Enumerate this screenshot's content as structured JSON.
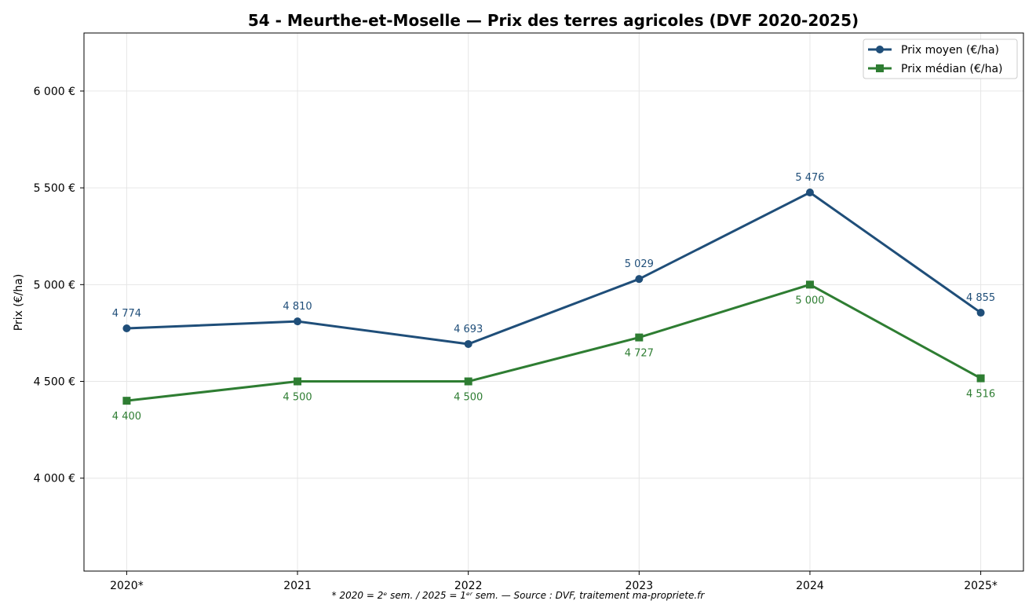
{
  "chart_data": {
    "type": "line",
    "title": "54 - Meurthe-et-Moselle — Prix des terres agricoles (DVF 2020-2025)",
    "xlabel": "",
    "ylabel": "Prix (€/ha)",
    "categories": [
      "2020*",
      "2021",
      "2022",
      "2023",
      "2024",
      "2025*"
    ],
    "ylim": [
      3520,
      6300
    ],
    "yticks": [
      4000,
      4500,
      5000,
      5500,
      6000
    ],
    "ytick_labels": [
      "4 000 €",
      "4 500 €",
      "5 000 €",
      "5 500 €",
      "6 000 €"
    ],
    "grid": true,
    "legend_position": "top-right",
    "series": [
      {
        "name": "Prix moyen (€/ha)",
        "color": "#1f4e79",
        "marker": "circle",
        "label_side": "above",
        "values": [
          4774,
          4810,
          4693,
          5029,
          5476,
          4855
        ],
        "labels": [
          "4 774",
          "4 810",
          "4 693",
          "5 029",
          "5 476",
          "4 855"
        ]
      },
      {
        "name": "Prix médian (€/ha)",
        "color": "#2e7d32",
        "marker": "square",
        "label_side": "below",
        "values": [
          4400,
          4500,
          4500,
          4727,
          5000,
          4516
        ],
        "labels": [
          "4 400",
          "4 500",
          "4 500",
          "4 727",
          "5 000",
          "4 516"
        ]
      }
    ],
    "footnote": "* 2020 = 2ᵉ sem. / 2025 = 1ᵉʳ sem. — Source : DVF, traitement ma-propriete.fr"
  }
}
